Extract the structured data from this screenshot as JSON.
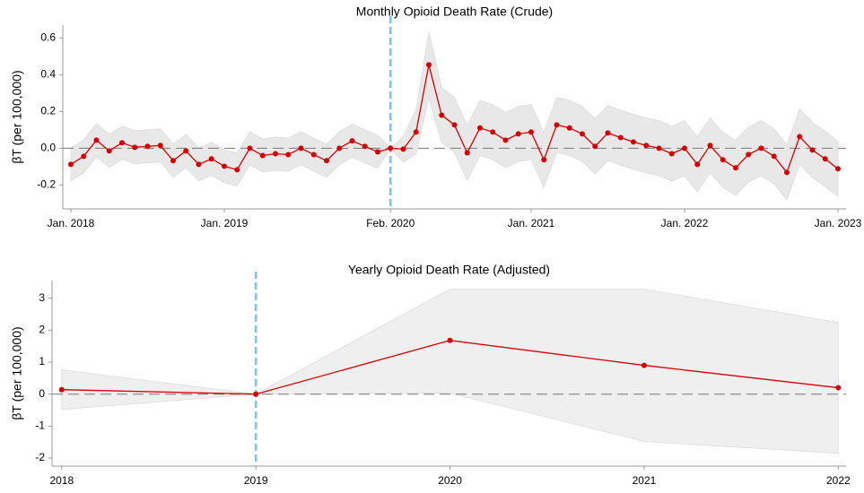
{
  "chart_data": [
    {
      "type": "line",
      "title": "Monthly Opioid Death Rate (Crude)",
      "ylabel": "βT (per 100,000)",
      "x": [
        "2018-01",
        "2018-02",
        "2018-03",
        "2018-04",
        "2018-05",
        "2018-06",
        "2018-07",
        "2018-08",
        "2018-09",
        "2018-10",
        "2018-11",
        "2018-12",
        "2019-01",
        "2019-02",
        "2019-03",
        "2019-04",
        "2019-05",
        "2019-06",
        "2019-07",
        "2019-08",
        "2019-09",
        "2019-10",
        "2019-11",
        "2019-12",
        "2020-01",
        "2020-02",
        "2020-03",
        "2020-04",
        "2020-05",
        "2020-06",
        "2020-07",
        "2020-08",
        "2020-09",
        "2020-10",
        "2020-11",
        "2020-12",
        "2021-01",
        "2021-02",
        "2021-03",
        "2021-04",
        "2021-05",
        "2021-06",
        "2021-07",
        "2021-08",
        "2021-09",
        "2021-10",
        "2021-11",
        "2021-12",
        "2022-01",
        "2022-02",
        "2022-03",
        "2022-04",
        "2022-05",
        "2022-06",
        "2022-07",
        "2022-08",
        "2022-09",
        "2022-10",
        "2022-11",
        "2022-12",
        "2023-01"
      ],
      "values": [
        -0.088,
        -0.044,
        0.044,
        -0.015,
        0.03,
        0.005,
        0.01,
        0.015,
        -0.068,
        -0.015,
        -0.088,
        -0.058,
        -0.098,
        -0.117,
        0,
        -0.04,
        -0.03,
        -0.035,
        0,
        -0.035,
        -0.068,
        0,
        0.04,
        0.01,
        -0.02,
        0,
        -0.005,
        0.088,
        0.454,
        0.18,
        0.127,
        -0.025,
        0.11,
        0.088,
        0.044,
        0.078,
        0.088,
        -0.063,
        0.127,
        0.11,
        0.078,
        0.01,
        0.083,
        0.058,
        0.034,
        0.015,
        0,
        -0.03,
        0,
        -0.088,
        0.015,
        -0.063,
        -0.107,
        -0.034,
        0,
        -0.044,
        -0.132,
        0.063,
        -0.01,
        -0.058,
        -0.112
      ],
      "lower": [
        -0.178,
        -0.134,
        -0.046,
        -0.105,
        -0.06,
        -0.085,
        -0.08,
        -0.075,
        -0.158,
        -0.105,
        -0.178,
        -0.148,
        -0.188,
        -0.207,
        -0.09,
        -0.13,
        -0.12,
        -0.125,
        -0.09,
        -0.125,
        -0.158,
        -0.09,
        -0.05,
        -0.08,
        -0.11,
        0,
        -0.075,
        -0.032,
        0.274,
        0.03,
        -0.023,
        -0.175,
        -0.04,
        -0.062,
        -0.106,
        -0.072,
        -0.062,
        -0.213,
        -0.023,
        -0.04,
        -0.072,
        -0.14,
        -0.067,
        -0.092,
        -0.116,
        -0.135,
        -0.15,
        -0.18,
        -0.15,
        -0.238,
        -0.135,
        -0.213,
        -0.257,
        -0.184,
        -0.15,
        -0.194,
        -0.282,
        -0.087,
        -0.16,
        -0.208,
        -0.262
      ],
      "upper": [
        0.002,
        0.046,
        0.134,
        0.075,
        0.12,
        0.095,
        0.1,
        0.105,
        0.022,
        0.075,
        0.002,
        0.032,
        -0.008,
        -0.027,
        0.09,
        0.05,
        0.06,
        0.055,
        0.09,
        0.055,
        0.022,
        0.09,
        0.13,
        0.1,
        0.07,
        0,
        0.065,
        0.208,
        0.634,
        0.33,
        0.277,
        0.125,
        0.26,
        0.238,
        0.194,
        0.228,
        0.238,
        0.087,
        0.277,
        0.26,
        0.228,
        0.16,
        0.233,
        0.208,
        0.184,
        0.165,
        0.15,
        0.12,
        0.15,
        0.062,
        0.165,
        0.087,
        0.043,
        0.116,
        0.15,
        0.106,
        0.018,
        0.213,
        0.14,
        0.092,
        0.038
      ],
      "color": "#d40000",
      "band_color": "#e8e8e8",
      "vline": "2020-02",
      "vline_color": "#7ec3df",
      "hline": 0,
      "xticks": [
        {
          "value": "2018-01",
          "label": "Jan. 2018"
        },
        {
          "value": "2019-01",
          "label": "Jan. 2019"
        },
        {
          "value": "2020-02",
          "label": "Feb. 2020"
        },
        {
          "value": "2021-01",
          "label": "Jan. 2021"
        },
        {
          "value": "2022-01",
          "label": "Jan. 2022"
        },
        {
          "value": "2023-01",
          "label": "Jan. 2023"
        }
      ],
      "ylim": [
        -0.33,
        0.67
      ],
      "yticks": [
        -0.2,
        {
          "value": 0,
          "label": "0.0"
        },
        0.2,
        0.4,
        0.6
      ]
    },
    {
      "type": "line",
      "title": "Yearly Opioid Death Rate (Adjusted)",
      "ylabel": "βT (per 100,000)",
      "x": [
        2018,
        2019,
        2020,
        2021,
        2022
      ],
      "values": [
        0.14,
        0,
        1.68,
        0.9,
        0.2
      ],
      "lower": [
        -0.48,
        0,
        0.03,
        -1.48,
        -1.85
      ],
      "upper": [
        0.76,
        0,
        3.28,
        3.28,
        2.24
      ],
      "color": "#d40000",
      "band_color": "#efefef",
      "vline": 2019,
      "vline_color": "#7ec3df",
      "hline": 0,
      "xlim": [
        2017.95,
        2022.04
      ],
      "xticks": [
        2018,
        2019,
        2020,
        2021,
        2022
      ],
      "ylim": [
        -2.25,
        3.55
      ],
      "yticks": [
        -2,
        -1,
        0,
        1,
        2,
        3
      ]
    }
  ]
}
